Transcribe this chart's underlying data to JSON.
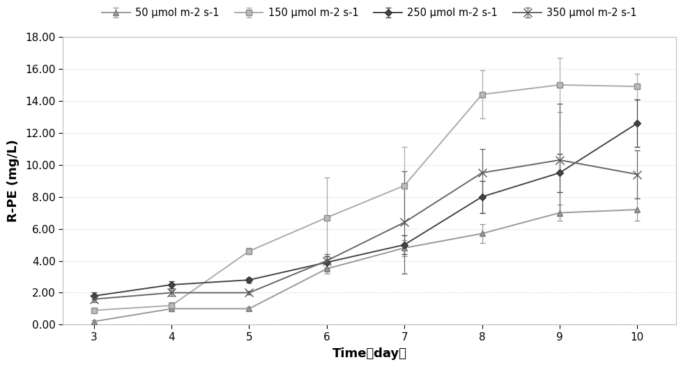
{
  "x": [
    3,
    4,
    5,
    6,
    7,
    8,
    9,
    10
  ],
  "series": [
    {
      "label": "50 μmol m-2 s-1",
      "color": "#999999",
      "marker": "^",
      "markersize": 6,
      "linewidth": 1.4,
      "markerfacecolor": "#999999",
      "markeredgecolor": "#777777",
      "y": [
        0.2,
        1.0,
        1.0,
        3.5,
        4.8,
        5.7,
        7.0,
        7.2
      ],
      "yerr": [
        0.1,
        0.15,
        0.1,
        0.3,
        0.5,
        0.6,
        0.5,
        0.7
      ]
    },
    {
      "label": "150 μmol m-2 s-1",
      "color": "#aaaaaa",
      "marker": "s",
      "markersize": 6,
      "linewidth": 1.4,
      "markerfacecolor": "#bbbbbb",
      "markeredgecolor": "#888888",
      "y": [
        0.9,
        1.2,
        4.6,
        6.7,
        8.7,
        14.4,
        15.0,
        14.9
      ],
      "yerr": [
        0.15,
        0.2,
        0.2,
        2.5,
        2.4,
        1.5,
        1.7,
        0.8
      ]
    },
    {
      "label": "250 μmol m-2 s-1",
      "color": "#444444",
      "marker": "D",
      "markersize": 5,
      "linewidth": 1.4,
      "markerfacecolor": "#444444",
      "markeredgecolor": "#333333",
      "y": [
        1.8,
        2.5,
        2.8,
        3.9,
        5.0,
        8.0,
        9.5,
        12.6
      ],
      "yerr": [
        0.2,
        0.2,
        0.15,
        0.4,
        0.6,
        1.0,
        1.2,
        1.5
      ]
    },
    {
      "label": "350 μmol m-2 s-1",
      "color": "#666666",
      "marker": "x",
      "markersize": 8,
      "linewidth": 1.4,
      "markerfacecolor": "#666666",
      "markeredgecolor": "#555555",
      "y": [
        1.6,
        2.0,
        2.0,
        4.0,
        6.4,
        9.5,
        10.3,
        9.4
      ],
      "yerr": [
        0.2,
        0.2,
        0.1,
        0.4,
        3.2,
        1.5,
        3.5,
        1.5
      ]
    }
  ],
  "xlabel": "Time（day）",
  "ylabel": "R-PE (mg/L)",
  "ylim": [
    0,
    18.0
  ],
  "yticks": [
    0.0,
    2.0,
    4.0,
    6.0,
    8.0,
    10.0,
    12.0,
    14.0,
    16.0,
    18.0
  ],
  "xticks": [
    3,
    4,
    5,
    6,
    7,
    8,
    9,
    10
  ],
  "background_color": "#ffffff",
  "grid_color": "#d0d0d0",
  "axis_fontsize": 13,
  "tick_fontsize": 11,
  "legend_fontsize": 10.5
}
